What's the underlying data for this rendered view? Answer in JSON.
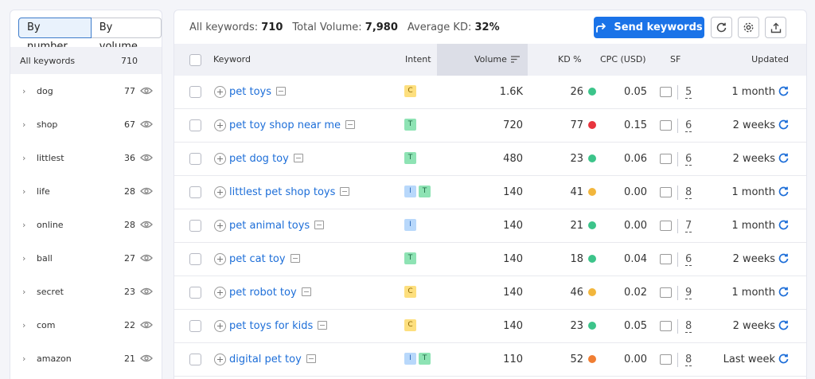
{
  "toggle": {
    "by_number": "By number",
    "by_volume": "By volume"
  },
  "sidebar": {
    "header_label": "All keywords",
    "header_count": "710",
    "items": [
      {
        "word": "dog",
        "count": "77"
      },
      {
        "word": "shop",
        "count": "67"
      },
      {
        "word": "littlest",
        "count": "36"
      },
      {
        "word": "life",
        "count": "28"
      },
      {
        "word": "online",
        "count": "28"
      },
      {
        "word": "ball",
        "count": "27"
      },
      {
        "word": "secret",
        "count": "23"
      },
      {
        "word": "com",
        "count": "22"
      },
      {
        "word": "amazon",
        "count": "21"
      }
    ]
  },
  "summary": {
    "all_keywords_label": "All keywords:",
    "all_keywords_value": "710",
    "total_volume_label": "Total Volume:",
    "total_volume_value": "7,980",
    "avg_kd_label": "Average KD:",
    "avg_kd_value": "32%"
  },
  "toolbar": {
    "send_label": "Send keywords",
    "refresh_icon": "refresh-icon",
    "settings_icon": "gear-icon",
    "export_icon": "export-icon"
  },
  "table": {
    "headers": {
      "keyword": "Keyword",
      "intent": "Intent",
      "volume": "Volume",
      "kd": "KD %",
      "cpc": "CPC (USD)",
      "sf": "SF",
      "updated": "Updated"
    },
    "rows": [
      {
        "keyword": "pet toys",
        "intents": [
          "C"
        ],
        "volume": "1.6K",
        "kd": "26",
        "kd_color": "#3cc48a",
        "cpc": "0.05",
        "sf": "5",
        "updated": "1 month"
      },
      {
        "keyword": "pet toy shop near me",
        "intents": [
          "T"
        ],
        "volume": "720",
        "kd": "77",
        "kd_color": "#e8353e",
        "cpc": "0.15",
        "sf": "6",
        "updated": "2 weeks"
      },
      {
        "keyword": "pet dog toy",
        "intents": [
          "T"
        ],
        "volume": "480",
        "kd": "23",
        "kd_color": "#3cc48a",
        "cpc": "0.06",
        "sf": "6",
        "updated": "2 weeks"
      },
      {
        "keyword": "littlest pet shop toys",
        "intents": [
          "I",
          "T"
        ],
        "volume": "140",
        "kd": "41",
        "kd_color": "#f2b63c",
        "cpc": "0.00",
        "sf": "8",
        "updated": "1 month"
      },
      {
        "keyword": "pet animal toys",
        "intents": [
          "I"
        ],
        "volume": "140",
        "kd": "21",
        "kd_color": "#3cc48a",
        "cpc": "0.00",
        "sf": "7",
        "updated": "1 month"
      },
      {
        "keyword": "pet cat toy",
        "intents": [
          "T"
        ],
        "volume": "140",
        "kd": "18",
        "kd_color": "#3cc48a",
        "cpc": "0.04",
        "sf": "6",
        "updated": "2 weeks"
      },
      {
        "keyword": "pet robot toy",
        "intents": [
          "C"
        ],
        "volume": "140",
        "kd": "46",
        "kd_color": "#f2b63c",
        "cpc": "0.02",
        "sf": "9",
        "updated": "1 month"
      },
      {
        "keyword": "pet toys for kids",
        "intents": [
          "C"
        ],
        "volume": "140",
        "kd": "23",
        "kd_color": "#3cc48a",
        "cpc": "0.05",
        "sf": "8",
        "updated": "2 weeks"
      },
      {
        "keyword": "digital pet toy",
        "intents": [
          "I",
          "T"
        ],
        "volume": "110",
        "kd": "52",
        "kd_color": "#f07e33",
        "cpc": "0.00",
        "sf": "8",
        "updated": "Last week"
      }
    ]
  },
  "intent_colors": {
    "C": {
      "bg": "#fddf7e",
      "fg": "#8a6400"
    },
    "T": {
      "bg": "#8ee3b4",
      "fg": "#1d6a43"
    },
    "I": {
      "bg": "#b8d8fb",
      "fg": "#2766b8"
    }
  }
}
